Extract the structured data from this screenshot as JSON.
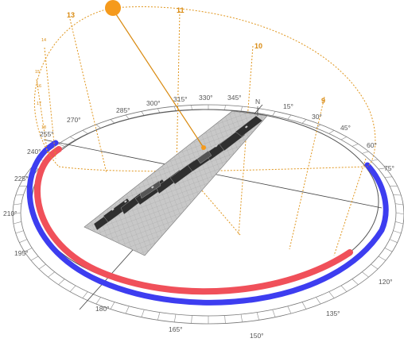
{
  "azimuth_labels": [
    "N",
    "15°",
    "30°",
    "45°",
    "60°",
    "75°",
    "120°",
    "135°",
    "150°",
    "165°",
    "180°",
    "195°",
    "210°",
    "225°",
    "240°",
    "255°",
    "270°",
    "285°",
    "300°",
    "315°",
    "330°",
    "345°"
  ],
  "hour_labels": [
    "9",
    "10",
    "11",
    "13"
  ],
  "hour_labels_small": [
    "14",
    "15",
    "16",
    "17",
    "18"
  ],
  "colors": {
    "sun": "#f59a1c",
    "sun_path": "#e0961e",
    "inner_arc": "#f0505a",
    "outer_arc": "#3d3df0",
    "ground_plate": "#c8c8c8",
    "buildings": "#3a3a3a"
  },
  "icons": [
    "sun-icon",
    "north-marker-icon"
  ]
}
